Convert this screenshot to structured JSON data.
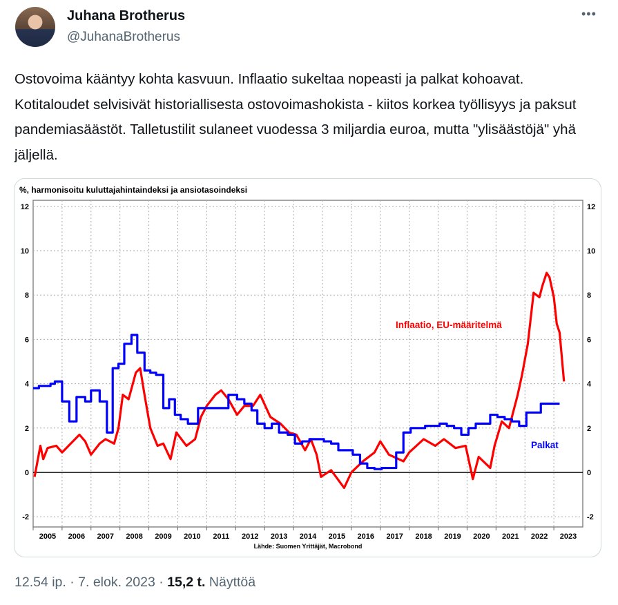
{
  "author": {
    "name": "Juhana Brotherus",
    "handle": "@JuhanaBrotherus"
  },
  "tweet_text": "Ostovoima kääntyy kohta kasvuun. Inflaatio sukeltaa nopeasti ja palkat kohoavat. Kotitaloudet selvisivät historiallisesta ostovoimashokista - kiitos korkea työllisyys ja paksut pandemiasäästöt. Talletustilit sulaneet vuodessa 3 miljardia euroa, mutta \"ylisäästöjä\" yhä jäljellä.",
  "more_label": "•••",
  "footer": {
    "time": "12.54 ip.",
    "sep": " · ",
    "date": "7. elok. 2023",
    "views_count": "15,2 t.",
    "views_label": "Näyttöä"
  },
  "chart_data": {
    "type": "line",
    "title": "%, harmonisoitu kuluttajahintaindeksi ja ansiotasoindeksi",
    "source": "Lähde: Suomen Yrittäjät, Macrobond",
    "ylim": [
      -2,
      12
    ],
    "yticks": [
      "12",
      "10",
      "8",
      "6",
      "4",
      "2",
      "0",
      "-2"
    ],
    "ytick_values": [
      12,
      10,
      8,
      6,
      4,
      2,
      0,
      -2
    ],
    "xlim": [
      2005,
      2024
    ],
    "xticks": [
      "2005",
      "2006",
      "2007",
      "2008",
      "2009",
      "2010",
      "2011",
      "2012",
      "2013",
      "2014",
      "2015",
      "2016",
      "2017",
      "2018",
      "2019",
      "2020",
      "2021",
      "2022",
      "2023"
    ],
    "grid": true,
    "colors": {
      "inflation": "#ff0000",
      "wages": "#0000ff"
    },
    "series": [
      {
        "name": "Inflaatio, EU-määritelmä",
        "style": "line",
        "points": [
          [
            2005.05,
            -0.2
          ],
          [
            2005.25,
            1.2
          ],
          [
            2005.35,
            0.6
          ],
          [
            2005.5,
            1.1
          ],
          [
            2005.8,
            1.2
          ],
          [
            2006.0,
            0.9
          ],
          [
            2006.3,
            1.3
          ],
          [
            2006.6,
            1.7
          ],
          [
            2006.8,
            1.4
          ],
          [
            2007.0,
            0.8
          ],
          [
            2007.3,
            1.3
          ],
          [
            2007.5,
            1.5
          ],
          [
            2007.8,
            1.3
          ],
          [
            2007.95,
            2.0
          ],
          [
            2008.1,
            3.5
          ],
          [
            2008.3,
            3.3
          ],
          [
            2008.55,
            4.5
          ],
          [
            2008.7,
            4.7
          ],
          [
            2008.85,
            3.5
          ],
          [
            2009.05,
            2.0
          ],
          [
            2009.3,
            1.2
          ],
          [
            2009.5,
            1.3
          ],
          [
            2009.75,
            0.6
          ],
          [
            2009.95,
            1.8
          ],
          [
            2010.3,
            1.2
          ],
          [
            2010.6,
            1.5
          ],
          [
            2010.8,
            2.5
          ],
          [
            2011.0,
            3.0
          ],
          [
            2011.3,
            3.5
          ],
          [
            2011.5,
            3.7
          ],
          [
            2011.75,
            3.3
          ],
          [
            2012.05,
            2.6
          ],
          [
            2012.3,
            3.0
          ],
          [
            2012.6,
            3.0
          ],
          [
            2012.85,
            3.5
          ],
          [
            2013.2,
            2.5
          ],
          [
            2013.55,
            2.2
          ],
          [
            2013.85,
            1.8
          ],
          [
            2014.1,
            1.7
          ],
          [
            2014.4,
            1.0
          ],
          [
            2014.6,
            1.5
          ],
          [
            2014.8,
            0.8
          ],
          [
            2014.95,
            -0.2
          ],
          [
            2015.3,
            0.1
          ],
          [
            2015.75,
            -0.7
          ],
          [
            2016.0,
            0.0
          ],
          [
            2016.4,
            0.5
          ],
          [
            2016.8,
            0.9
          ],
          [
            2017.0,
            1.4
          ],
          [
            2017.3,
            0.8
          ],
          [
            2017.8,
            0.5
          ],
          [
            2018.0,
            0.9
          ],
          [
            2018.5,
            1.5
          ],
          [
            2018.9,
            1.2
          ],
          [
            2019.2,
            1.5
          ],
          [
            2019.6,
            1.1
          ],
          [
            2019.95,
            1.2
          ],
          [
            2020.2,
            -0.3
          ],
          [
            2020.4,
            0.7
          ],
          [
            2020.8,
            0.2
          ],
          [
            2020.95,
            1.2
          ],
          [
            2021.2,
            2.3
          ],
          [
            2021.45,
            2.0
          ],
          [
            2021.75,
            3.5
          ],
          [
            2021.9,
            4.4
          ],
          [
            2022.1,
            5.8
          ],
          [
            2022.3,
            8.1
          ],
          [
            2022.5,
            7.9
          ],
          [
            2022.6,
            8.4
          ],
          [
            2022.75,
            9.0
          ],
          [
            2022.85,
            8.8
          ],
          [
            2023.0,
            7.9
          ],
          [
            2023.1,
            6.7
          ],
          [
            2023.2,
            6.3
          ],
          [
            2023.35,
            4.1
          ]
        ]
      },
      {
        "name": "Palkat",
        "style": "step",
        "points": [
          [
            2005.0,
            3.8
          ],
          [
            2005.2,
            3.9
          ],
          [
            2005.6,
            4.0
          ],
          [
            2005.75,
            4.1
          ],
          [
            2006.0,
            3.2
          ],
          [
            2006.25,
            2.3
          ],
          [
            2006.5,
            3.4
          ],
          [
            2006.8,
            3.2
          ],
          [
            2007.0,
            3.7
          ],
          [
            2007.3,
            3.2
          ],
          [
            2007.55,
            1.8
          ],
          [
            2007.75,
            4.7
          ],
          [
            2007.95,
            4.9
          ],
          [
            2008.15,
            5.8
          ],
          [
            2008.4,
            6.2
          ],
          [
            2008.6,
            5.4
          ],
          [
            2008.85,
            4.6
          ],
          [
            2009.05,
            4.5
          ],
          [
            2009.25,
            4.4
          ],
          [
            2009.5,
            2.9
          ],
          [
            2009.7,
            3.3
          ],
          [
            2009.9,
            2.6
          ],
          [
            2010.1,
            2.4
          ],
          [
            2010.35,
            2.2
          ],
          [
            2010.7,
            2.9
          ],
          [
            2011.75,
            3.5
          ],
          [
            2012.05,
            3.3
          ],
          [
            2012.3,
            3.1
          ],
          [
            2012.55,
            2.8
          ],
          [
            2012.75,
            2.2
          ],
          [
            2013.0,
            2.0
          ],
          [
            2013.25,
            2.2
          ],
          [
            2013.5,
            1.8
          ],
          [
            2013.8,
            1.7
          ],
          [
            2014.05,
            1.3
          ],
          [
            2014.3,
            1.4
          ],
          [
            2014.55,
            1.5
          ],
          [
            2015.05,
            1.4
          ],
          [
            2015.3,
            1.3
          ],
          [
            2015.55,
            1.0
          ],
          [
            2016.05,
            0.8
          ],
          [
            2016.3,
            0.4
          ],
          [
            2016.55,
            0.2
          ],
          [
            2016.8,
            0.15
          ],
          [
            2017.05,
            0.2
          ],
          [
            2017.55,
            0.9
          ],
          [
            2017.8,
            1.8
          ],
          [
            2018.05,
            2.0
          ],
          [
            2018.55,
            2.1
          ],
          [
            2019.05,
            2.2
          ],
          [
            2019.3,
            2.1
          ],
          [
            2019.55,
            2.0
          ],
          [
            2019.8,
            1.7
          ],
          [
            2020.05,
            2.0
          ],
          [
            2020.3,
            2.2
          ],
          [
            2020.8,
            2.6
          ],
          [
            2021.05,
            2.5
          ],
          [
            2021.3,
            2.4
          ],
          [
            2021.55,
            2.3
          ],
          [
            2021.8,
            2.1
          ],
          [
            2022.05,
            2.7
          ],
          [
            2022.3,
            2.7
          ],
          [
            2022.55,
            3.1
          ],
          [
            2023.2,
            3.1
          ]
        ]
      }
    ],
    "labels": {
      "inflation": "Inflaatio, EU-määritelmä",
      "wages": "Palkat"
    }
  }
}
